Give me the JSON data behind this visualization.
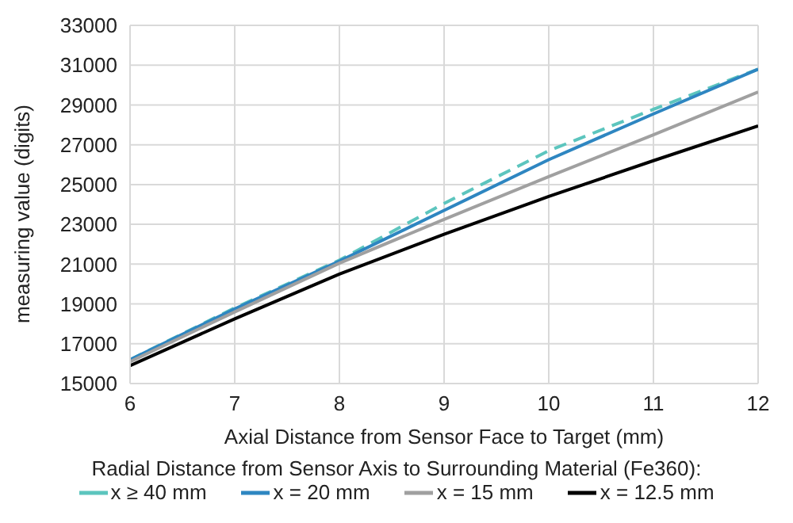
{
  "chart_data": {
    "type": "line",
    "xlabel": "Axial Distance from Sensor Face to Target (mm)",
    "ylabel": "measuring value (digits)",
    "legend_title": "Radial Distance from Sensor Axis to Surrounding Material (Fe360):",
    "x": [
      6,
      7,
      8,
      9,
      10,
      11,
      12
    ],
    "series": [
      {
        "name": "x ≥ 40 mm",
        "color": "#5cc5be",
        "line_style": "dashed",
        "values": [
          16200,
          18800,
          21200,
          24050,
          26700,
          28780,
          30800
        ]
      },
      {
        "name": "x = 20 mm",
        "color": "#2e86c1",
        "values": [
          16200,
          18750,
          21150,
          23700,
          26250,
          28550,
          30800
        ]
      },
      {
        "name": "x = 15 mm",
        "color": "#a0a0a0",
        "values": [
          16100,
          18600,
          21050,
          23250,
          25400,
          27500,
          29650
        ]
      },
      {
        "name": "x = 12.5 mm",
        "color": "#000000",
        "values": [
          15900,
          18250,
          20500,
          22500,
          24400,
          26200,
          27950
        ]
      }
    ],
    "xlim": [
      6,
      12
    ],
    "xticks": [
      6,
      7,
      8,
      9,
      10,
      11,
      12
    ],
    "ylim": [
      15000,
      33000
    ],
    "yticks": [
      15000,
      17000,
      19000,
      21000,
      23000,
      25000,
      27000,
      29000,
      31000,
      33000
    ],
    "grid": true,
    "legend": "bottom",
    "marker": "none",
    "line_style": "solid"
  }
}
